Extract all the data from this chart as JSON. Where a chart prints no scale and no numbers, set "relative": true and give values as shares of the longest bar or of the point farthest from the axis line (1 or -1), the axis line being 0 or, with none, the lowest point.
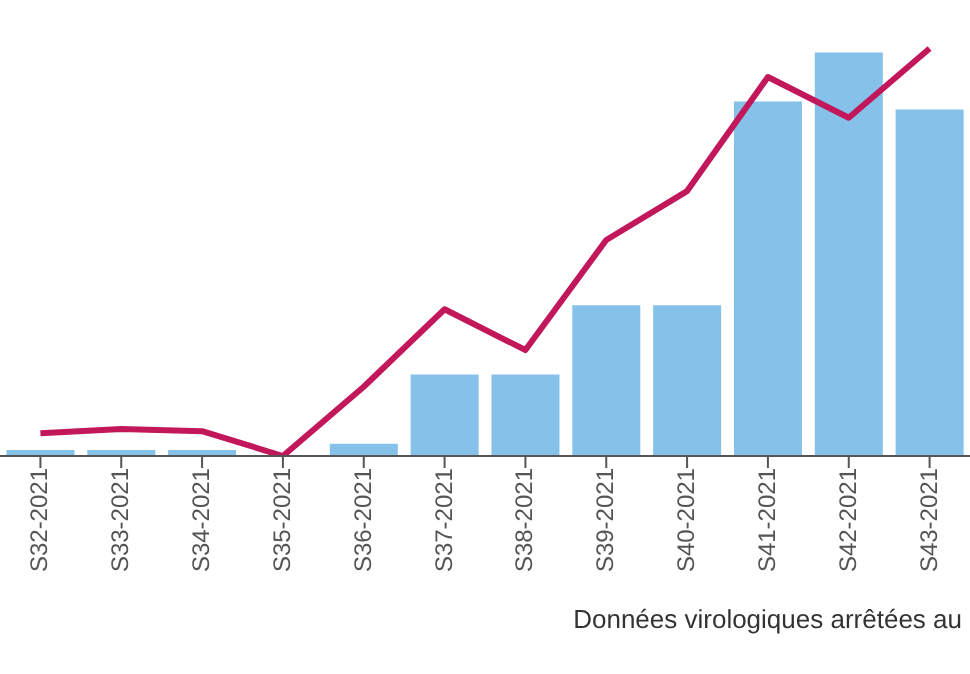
{
  "chart_data": {
    "type": "bar",
    "relative": true,
    "marker": "none",
    "categories": [
      "S32-2021",
      "S33-2021",
      "S34-2021",
      "S35-2021",
      "S36-2021",
      "S37-2021",
      "S38-2021",
      "S39-2021",
      "S40-2021",
      "S41-2021",
      "S42-2021",
      "S43-2021"
    ],
    "series": [
      {
        "color": "#85c1e9",
        "values": [
          0.015,
          0.015,
          0.015,
          0,
          0.03,
          0.2,
          0.2,
          0.37,
          0.37,
          0.87,
          0.99,
          0.85
        ]
      },
      {
        "type": "line",
        "color": "#c2185b",
        "values": [
          0.056,
          0.066,
          0.061,
          0,
          0.17,
          0.36,
          0.26,
          0.53,
          0.65,
          0.93,
          0.83,
          1
        ]
      }
    ],
    "annotations": [
      "Données virologiques arrêtées au"
    ]
  }
}
